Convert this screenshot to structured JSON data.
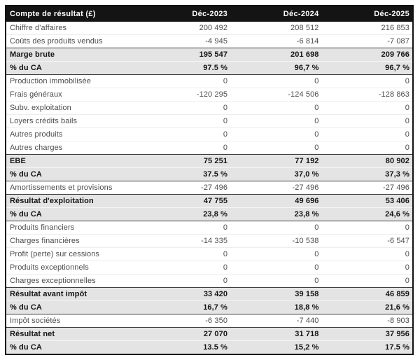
{
  "table": {
    "title": "Compte de résultat (£)",
    "columns": [
      "Déc-2023",
      "Déc-2024",
      "Déc-2025"
    ],
    "rows": [
      {
        "label": "Chiffre d'affaires",
        "values": [
          "200 492",
          "208 512",
          "216 853"
        ],
        "emphasis": false
      },
      {
        "label": "Coûts des produits vendus",
        "values": [
          "-4 945",
          "-6 814",
          "-7 087"
        ],
        "emphasis": false
      },
      {
        "label": "Marge brute",
        "values": [
          "195 547",
          "201 698",
          "209 766"
        ],
        "emphasis": true
      },
      {
        "label": "% du CA",
        "values": [
          "97.5 %",
          "96,7 %",
          "96,7 %"
        ],
        "emphasis": true
      },
      {
        "label": "Production immobilisée",
        "values": [
          "0",
          "0",
          "0"
        ],
        "emphasis": false
      },
      {
        "label": "Frais généraux",
        "values": [
          "-120 295",
          "-124 506",
          "-128 863"
        ],
        "emphasis": false
      },
      {
        "label": "Subv. exploitation",
        "values": [
          "0",
          "0",
          "0"
        ],
        "emphasis": false
      },
      {
        "label": "Loyers crédits bails",
        "values": [
          "0",
          "0",
          "0"
        ],
        "emphasis": false
      },
      {
        "label": "Autres produits",
        "values": [
          "0",
          "0",
          "0"
        ],
        "emphasis": false
      },
      {
        "label": "Autres charges",
        "values": [
          "0",
          "0",
          "0"
        ],
        "emphasis": false
      },
      {
        "label": "EBE",
        "values": [
          "75 251",
          "77 192",
          "80 902"
        ],
        "emphasis": true
      },
      {
        "label": "% du CA",
        "values": [
          "37.5 %",
          "37,0 %",
          "37,3 %"
        ],
        "emphasis": true
      },
      {
        "label": "Amortissements et provisions",
        "values": [
          "-27 496",
          "-27 496",
          "-27 496"
        ],
        "emphasis": false
      },
      {
        "label": "Résultat d'exploitation",
        "values": [
          "47 755",
          "49 696",
          "53 406"
        ],
        "emphasis": true
      },
      {
        "label": "% du CA",
        "values": [
          "23,8 %",
          "23,8 %",
          "24,6 %"
        ],
        "emphasis": true
      },
      {
        "label": "Produits financiers",
        "values": [
          "0",
          "0",
          "0"
        ],
        "emphasis": false
      },
      {
        "label": "Charges financières",
        "values": [
          "-14 335",
          "-10 538",
          "-6 547"
        ],
        "emphasis": false
      },
      {
        "label": "Profit (perte) sur cessions",
        "values": [
          "0",
          "0",
          "0"
        ],
        "emphasis": false
      },
      {
        "label": "Produits exceptionnels",
        "values": [
          "0",
          "0",
          "0"
        ],
        "emphasis": false
      },
      {
        "label": "Charges exceptionnelles",
        "values": [
          "0",
          "0",
          "0"
        ],
        "emphasis": false
      },
      {
        "label": "Résultat avant impôt",
        "values": [
          "33 420",
          "39 158",
          "46 859"
        ],
        "emphasis": true
      },
      {
        "label": "% du CA",
        "values": [
          "16,7 %",
          "18,8 %",
          "21,6 %"
        ],
        "emphasis": true
      },
      {
        "label": "Impôt sociétés",
        "values": [
          "-6 350",
          "-7 440",
          "-8 903"
        ],
        "emphasis": false
      },
      {
        "label": "Résultat net",
        "values": [
          "27 070",
          "31 718",
          "37 956"
        ],
        "emphasis": true
      },
      {
        "label": "% du CA",
        "values": [
          "13.5 %",
          "15,2 %",
          "17.5 %"
        ],
        "emphasis": true
      }
    ],
    "colors": {
      "header_bg": "#141414",
      "header_text": "#ffffff",
      "band_bg": "#e4e4e4",
      "body_text": "#4c4c4c",
      "emphasis_text": "#141414",
      "border": "#101010"
    }
  }
}
